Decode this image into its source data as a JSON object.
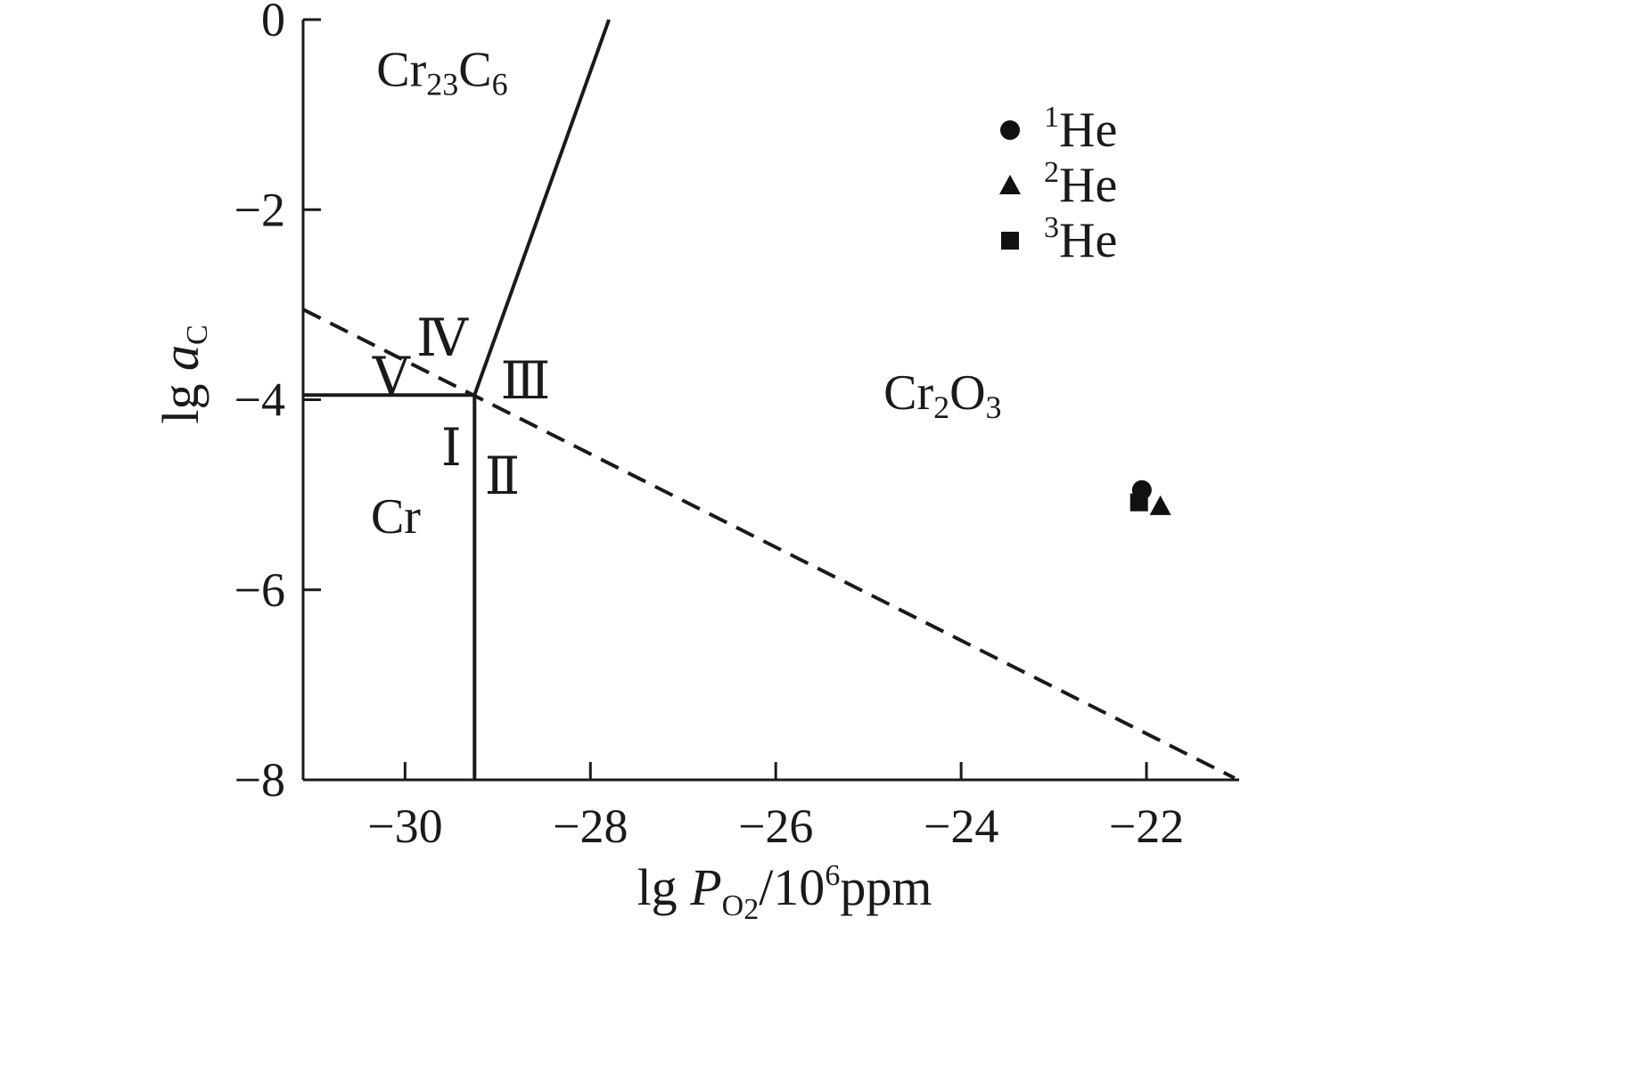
{
  "chart_data": {
    "type": "scatter",
    "xlabel": {
      "prefix": "lg ",
      "var": "P",
      "sub": "O",
      "sub2": "2",
      "mid": "/10",
      "sup": "6",
      "suffix": "ppm"
    },
    "ylabel": {
      "prefix": "lg ",
      "var": "a",
      "sub": "C"
    },
    "xlim": [
      -31.1,
      -21.0
    ],
    "ylim": [
      -8,
      0
    ],
    "x_ticks": [
      {
        "value": -30,
        "label": "−30"
      },
      {
        "value": -28,
        "label": "−28"
      },
      {
        "value": -26,
        "label": "−26"
      },
      {
        "value": -24,
        "label": "−24"
      },
      {
        "value": -22,
        "label": "−22"
      }
    ],
    "y_ticks": [
      {
        "value": 0,
        "label": "0"
      },
      {
        "value": -2,
        "label": "−2"
      },
      {
        "value": -4,
        "label": "−4"
      },
      {
        "value": -6,
        "label": "−6"
      },
      {
        "value": -8,
        "label": "−8"
      }
    ],
    "boundaries": [
      {
        "name": "Cr/Cr23C6",
        "style": "solid",
        "points": [
          [
            -31.1,
            -3.95
          ],
          [
            -29.25,
            -3.95
          ]
        ]
      },
      {
        "name": "Cr/Cr2O3",
        "style": "solid",
        "points": [
          [
            -29.25,
            -3.95
          ],
          [
            -29.25,
            -8.0
          ]
        ]
      },
      {
        "name": "Cr23C6/Cr2O3",
        "style": "solid",
        "points": [
          [
            -29.25,
            -3.95
          ],
          [
            -27.8,
            0.0
          ]
        ]
      },
      {
        "name": "dashed",
        "style": "dashed",
        "points": [
          [
            -31.1,
            -3.05
          ],
          [
            -21.05,
            -7.98
          ]
        ]
      }
    ],
    "regions": [
      {
        "label": {
          "main": "Cr",
          "sub": "23",
          "main2": "C",
          "sub2": "6"
        },
        "x": -29.6,
        "y": -0.7
      },
      {
        "label": {
          "main": "Cr",
          "sub": "2",
          "main2": "O",
          "sub2": "3"
        },
        "x": -24.2,
        "y": -4.1
      },
      {
        "label": {
          "main": "Cr",
          "sub": "",
          "main2": "",
          "sub2": ""
        },
        "x": -30.1,
        "y": -5.4
      }
    ],
    "roman_labels": [
      {
        "text": "Ⅰ",
        "x": -29.5,
        "y": -4.5
      },
      {
        "text": "Ⅱ",
        "x": -28.95,
        "y": -4.8
      },
      {
        "text": "Ⅲ",
        "x": -28.7,
        "y": -3.8
      },
      {
        "text": "Ⅳ",
        "x": -29.6,
        "y": -3.35
      },
      {
        "text": "Ⅴ",
        "x": -30.15,
        "y": -3.75
      }
    ],
    "series": [
      {
        "name": "He",
        "sup": "1",
        "marker": "circle",
        "points": [
          [
            -22.05,
            -4.95
          ]
        ]
      },
      {
        "name": "He",
        "sup": "2",
        "marker": "triangle",
        "points": [
          [
            -21.85,
            -5.12
          ]
        ]
      },
      {
        "name": "He",
        "sup": "3",
        "marker": "square",
        "points": [
          [
            -22.08,
            -5.08
          ]
        ]
      }
    ],
    "legend_position": "top-right"
  }
}
